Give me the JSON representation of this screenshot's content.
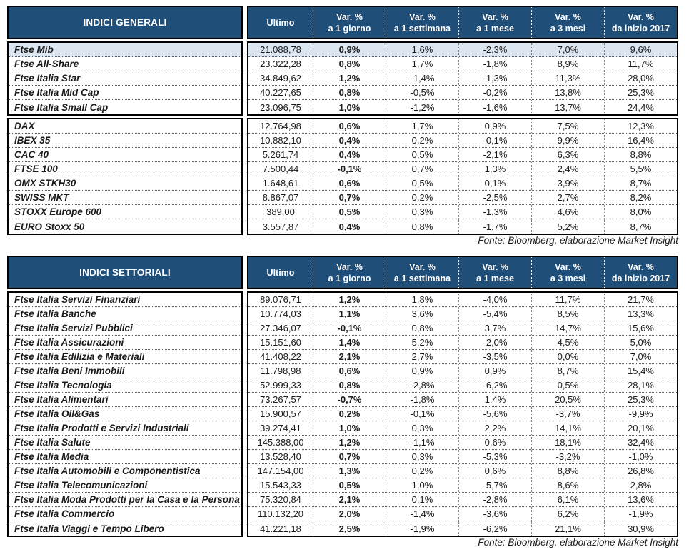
{
  "colors": {
    "header_bg": "#1F4E79",
    "header_text": "#FFFFFF",
    "highlight_row_bg": "#DCE6F1",
    "border": "#000000",
    "text": "#1A1A1A"
  },
  "columns": [
    {
      "line1": "Ultimo",
      "line2": ""
    },
    {
      "line1": "Var. %",
      "line2": "a 1 giorno"
    },
    {
      "line1": "Var. %",
      "line2": "a 1 settimana"
    },
    {
      "line1": "Var. %",
      "line2": "a 1 mese"
    },
    {
      "line1": "Var. %",
      "line2": "a 3 mesi"
    },
    {
      "line1": "Var. %",
      "line2": "da inizio 2017"
    }
  ],
  "general": {
    "title": "INDICI GENERALI",
    "source": "Fonte: Bloomberg, elaborazione Market Insight",
    "group_a": [
      {
        "name": "Ftse Mib",
        "highlight": true,
        "values": [
          "21.088,78",
          "0,9%",
          "1,6%",
          "-2,3%",
          "7,0%",
          "9,6%"
        ]
      },
      {
        "name": "Ftse All-Share",
        "values": [
          "23.322,28",
          "0,8%",
          "1,7%",
          "-1,8%",
          "8,9%",
          "11,7%"
        ]
      },
      {
        "name": "Ftse Italia Star",
        "values": [
          "34.849,62",
          "1,2%",
          "-1,4%",
          "-1,3%",
          "11,3%",
          "28,0%"
        ]
      },
      {
        "name": "Ftse Italia Mid Cap",
        "values": [
          "40.227,65",
          "0,8%",
          "-0,5%",
          "-0,2%",
          "13,8%",
          "25,3%"
        ]
      },
      {
        "name": "Ftse Italia Small Cap",
        "values": [
          "23.096,75",
          "1,0%",
          "-1,2%",
          "-1,6%",
          "13,7%",
          "24,4%"
        ]
      }
    ],
    "group_b": [
      {
        "name": "DAX",
        "values": [
          "12.764,98",
          "0,6%",
          "1,7%",
          "0,9%",
          "7,5%",
          "12,3%"
        ]
      },
      {
        "name": "IBEX 35",
        "values": [
          "10.882,10",
          "0,4%",
          "0,2%",
          "-0,1%",
          "9,9%",
          "16,4%"
        ]
      },
      {
        "name": "CAC 40",
        "values": [
          "5.261,74",
          "0,4%",
          "0,5%",
          "-2,1%",
          "6,3%",
          "8,8%"
        ]
      },
      {
        "name": "FTSE 100",
        "values": [
          "7.500,44",
          "-0,1%",
          "0,7%",
          "1,3%",
          "2,4%",
          "5,5%"
        ]
      },
      {
        "name": "OMX STKH30",
        "values": [
          "1.648,61",
          "0,6%",
          "0,5%",
          "0,1%",
          "3,9%",
          "8,7%"
        ]
      },
      {
        "name": "SWISS MKT",
        "values": [
          "8.867,07",
          "0,7%",
          "0,2%",
          "-2,5%",
          "2,7%",
          "8,2%"
        ]
      },
      {
        "name": "STOXX Europe 600",
        "values": [
          "389,00",
          "0,5%",
          "0,3%",
          "-1,3%",
          "4,6%",
          "8,0%"
        ]
      },
      {
        "name": "EURO Stoxx 50",
        "values": [
          "3.557,87",
          "0,4%",
          "0,8%",
          "-1,7%",
          "5,2%",
          "8,7%"
        ]
      }
    ]
  },
  "sectorial": {
    "title": "INDICI SETTORIALI",
    "source": "Fonte: Bloomberg, elaborazione Market Insight",
    "rows": [
      {
        "name": "Ftse Italia Servizi Finanziari",
        "values": [
          "89.076,71",
          "1,2%",
          "1,8%",
          "-4,0%",
          "11,7%",
          "21,7%"
        ]
      },
      {
        "name": "Ftse Italia Banche",
        "values": [
          "10.774,03",
          "1,1%",
          "3,6%",
          "-5,4%",
          "8,5%",
          "13,3%"
        ]
      },
      {
        "name": "Ftse Italia Servizi Pubblici",
        "values": [
          "27.346,07",
          "-0,1%",
          "0,8%",
          "3,7%",
          "14,7%",
          "15,6%"
        ]
      },
      {
        "name": "Ftse Italia Assicurazioni",
        "values": [
          "15.151,60",
          "1,4%",
          "5,2%",
          "-2,0%",
          "4,5%",
          "5,0%"
        ]
      },
      {
        "name": "Ftse Italia Edilizia e Materiali",
        "values": [
          "41.408,22",
          "2,1%",
          "2,7%",
          "-3,5%",
          "0,0%",
          "7,0%"
        ]
      },
      {
        "name": "Ftse Italia Beni Immobili",
        "values": [
          "11.798,98",
          "0,6%",
          "0,9%",
          "0,9%",
          "8,7%",
          "15,4%"
        ]
      },
      {
        "name": "Ftse Italia Tecnologia",
        "values": [
          "52.999,33",
          "0,8%",
          "-2,8%",
          "-6,2%",
          "0,5%",
          "28,1%"
        ]
      },
      {
        "name": "Ftse Italia Alimentari",
        "values": [
          "73.267,57",
          "-0,7%",
          "-1,8%",
          "1,4%",
          "20,5%",
          "25,3%"
        ]
      },
      {
        "name": "Ftse Italia Oil&Gas",
        "values": [
          "15.900,57",
          "0,2%",
          "-0,1%",
          "-5,6%",
          "-3,7%",
          "-9,9%"
        ]
      },
      {
        "name": "Ftse Italia Prodotti e Servizi Industriali",
        "values": [
          "39.274,41",
          "1,0%",
          "0,3%",
          "2,2%",
          "14,1%",
          "20,1%"
        ]
      },
      {
        "name": "Ftse Italia Salute",
        "values": [
          "145.388,00",
          "1,2%",
          "-1,1%",
          "0,6%",
          "18,1%",
          "32,4%"
        ]
      },
      {
        "name": "Ftse Italia Media",
        "values": [
          "13.528,40",
          "0,7%",
          "0,3%",
          "-5,3%",
          "-3,2%",
          "-1,0%"
        ]
      },
      {
        "name": "Ftse Italia Automobili e Componentistica",
        "values": [
          "147.154,00",
          "1,3%",
          "0,2%",
          "0,6%",
          "8,8%",
          "26,8%"
        ]
      },
      {
        "name": "Ftse Italia Telecomunicazioni",
        "values": [
          "15.543,33",
          "0,5%",
          "1,0%",
          "-5,7%",
          "8,6%",
          "2,8%"
        ]
      },
      {
        "name": "Ftse Italia Moda Prodotti per la Casa e la Persona",
        "values": [
          "75.320,84",
          "2,1%",
          "0,1%",
          "-2,8%",
          "6,1%",
          "13,6%"
        ]
      },
      {
        "name": "Ftse Italia Commercio",
        "values": [
          "110.132,20",
          "2,0%",
          "-1,4%",
          "-3,6%",
          "6,2%",
          "-1,9%"
        ]
      },
      {
        "name": "Ftse Italia Viaggi e Tempo Libero",
        "values": [
          "41.221,18",
          "2,5%",
          "-1,9%",
          "-6,2%",
          "21,1%",
          "30,9%"
        ]
      }
    ]
  }
}
